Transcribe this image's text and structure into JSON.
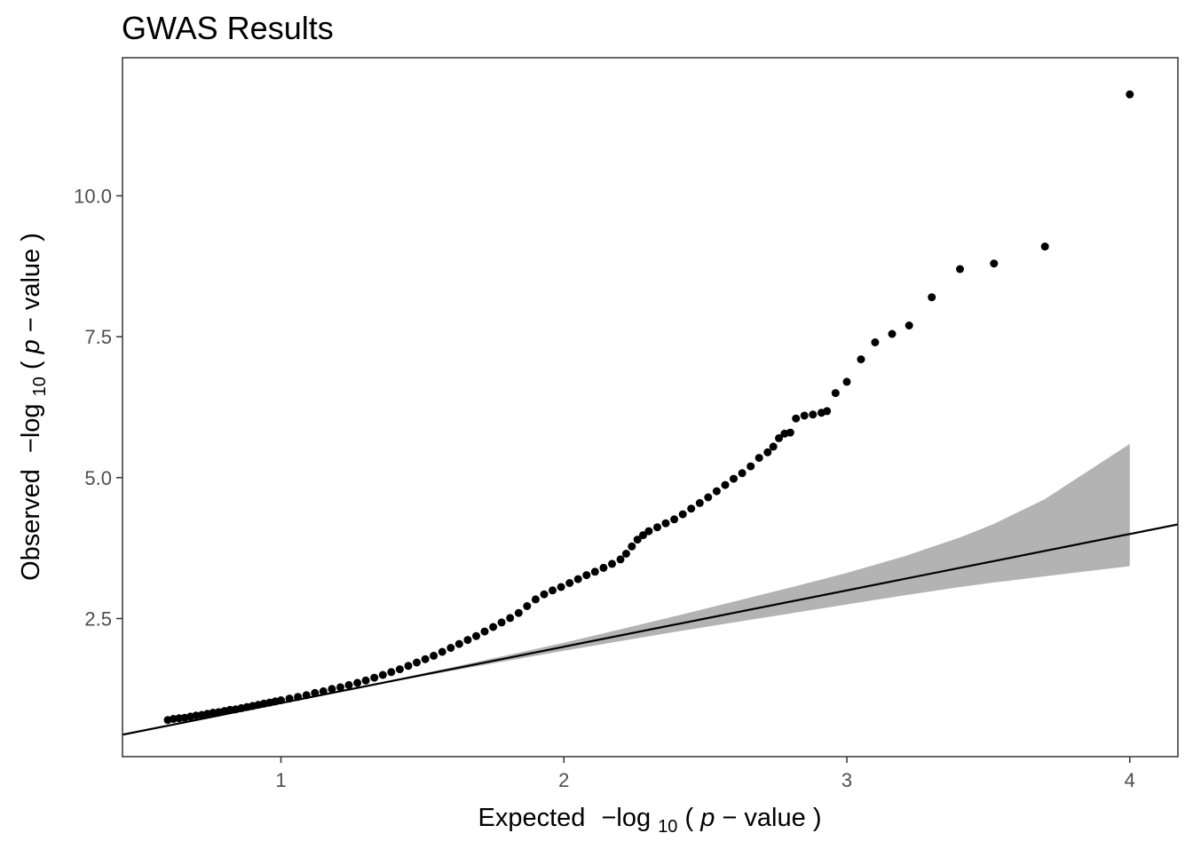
{
  "chart_data": {
    "type": "scatter",
    "title": "GWAS Results",
    "xlabel": {
      "prefix": "Expected",
      "minus_log": "−log",
      "sub": "10",
      "open": "(",
      "var": "p",
      "mid": " − value",
      "close": ")"
    },
    "ylabel": {
      "prefix": "Observed",
      "minus_log": "−log",
      "sub": "10",
      "open": "(",
      "var": "p",
      "mid": " − value",
      "close": ")"
    },
    "xlim": [
      0.44,
      4.17
    ],
    "ylim": [
      0.05,
      12.45
    ],
    "x_ticks": [
      {
        "value": 1,
        "label": "1"
      },
      {
        "value": 2,
        "label": "2"
      },
      {
        "value": 3,
        "label": "3"
      },
      {
        "value": 4,
        "label": "4"
      }
    ],
    "y_ticks": [
      {
        "value": 2.5,
        "label": "2.5"
      },
      {
        "value": 5.0,
        "label": "5.0"
      },
      {
        "value": 7.5,
        "label": "7.5"
      },
      {
        "value": 10.0,
        "label": "10.0"
      }
    ],
    "grid": false,
    "legend": "none",
    "reference_line": {
      "slope": 1,
      "intercept": 0,
      "color": "#000000"
    },
    "confidence_band": {
      "color": "#b3b3b3",
      "x": [
        1.3,
        1.6,
        1.8,
        2.0,
        2.2,
        2.4,
        2.6,
        2.8,
        3.0,
        3.2,
        3.4,
        3.52,
        3.7,
        4.0
      ],
      "lower": [
        1.29,
        1.57,
        1.75,
        1.93,
        2.1,
        2.27,
        2.43,
        2.59,
        2.75,
        2.91,
        3.06,
        3.14,
        3.25,
        3.43
      ],
      "upper": [
        1.31,
        1.63,
        1.85,
        2.07,
        2.31,
        2.55,
        2.8,
        3.05,
        3.31,
        3.6,
        3.94,
        4.18,
        4.62,
        5.6
      ]
    },
    "point_color": "#000000",
    "points": [
      [
        0.6,
        0.7
      ],
      [
        0.62,
        0.72
      ],
      [
        0.64,
        0.73
      ],
      [
        0.66,
        0.74
      ],
      [
        0.68,
        0.76
      ],
      [
        0.7,
        0.78
      ],
      [
        0.72,
        0.79
      ],
      [
        0.74,
        0.81
      ],
      [
        0.76,
        0.83
      ],
      [
        0.78,
        0.84
      ],
      [
        0.8,
        0.86
      ],
      [
        0.82,
        0.88
      ],
      [
        0.84,
        0.89
      ],
      [
        0.86,
        0.91
      ],
      [
        0.88,
        0.93
      ],
      [
        0.9,
        0.95
      ],
      [
        0.92,
        0.97
      ],
      [
        0.94,
        0.99
      ],
      [
        0.96,
        1.01
      ],
      [
        0.98,
        1.03
      ],
      [
        1.0,
        1.05
      ],
      [
        1.03,
        1.08
      ],
      [
        1.06,
        1.11
      ],
      [
        1.09,
        1.14
      ],
      [
        1.12,
        1.18
      ],
      [
        1.15,
        1.21
      ],
      [
        1.18,
        1.25
      ],
      [
        1.21,
        1.28
      ],
      [
        1.24,
        1.32
      ],
      [
        1.27,
        1.36
      ],
      [
        1.3,
        1.4
      ],
      [
        1.33,
        1.45
      ],
      [
        1.36,
        1.5
      ],
      [
        1.39,
        1.55
      ],
      [
        1.42,
        1.6
      ],
      [
        1.45,
        1.66
      ],
      [
        1.48,
        1.72
      ],
      [
        1.51,
        1.78
      ],
      [
        1.54,
        1.84
      ],
      [
        1.57,
        1.91
      ],
      [
        1.6,
        1.98
      ],
      [
        1.63,
        2.05
      ],
      [
        1.66,
        2.12
      ],
      [
        1.69,
        2.19
      ],
      [
        1.72,
        2.27
      ],
      [
        1.75,
        2.35
      ],
      [
        1.78,
        2.43
      ],
      [
        1.81,
        2.51
      ],
      [
        1.84,
        2.6
      ],
      [
        1.87,
        2.72
      ],
      [
        1.9,
        2.84
      ],
      [
        1.93,
        2.93
      ],
      [
        1.96,
        3.0
      ],
      [
        1.99,
        3.06
      ],
      [
        2.02,
        3.13
      ],
      [
        2.05,
        3.2
      ],
      [
        2.08,
        3.27
      ],
      [
        2.11,
        3.33
      ],
      [
        2.14,
        3.4
      ],
      [
        2.17,
        3.47
      ],
      [
        2.2,
        3.55
      ],
      [
        2.22,
        3.65
      ],
      [
        2.24,
        3.78
      ],
      [
        2.26,
        3.9
      ],
      [
        2.28,
        3.98
      ],
      [
        2.3,
        4.05
      ],
      [
        2.33,
        4.12
      ],
      [
        2.36,
        4.19
      ],
      [
        2.39,
        4.26
      ],
      [
        2.42,
        4.35
      ],
      [
        2.45,
        4.45
      ],
      [
        2.48,
        4.55
      ],
      [
        2.51,
        4.65
      ],
      [
        2.54,
        4.76
      ],
      [
        2.57,
        4.87
      ],
      [
        2.6,
        4.98
      ],
      [
        2.63,
        5.08
      ],
      [
        2.66,
        5.2
      ],
      [
        2.69,
        5.35
      ],
      [
        2.72,
        5.45
      ],
      [
        2.74,
        5.55
      ],
      [
        2.76,
        5.7
      ],
      [
        2.78,
        5.78
      ],
      [
        2.8,
        5.8
      ],
      [
        2.82,
        6.05
      ],
      [
        2.85,
        6.1
      ],
      [
        2.88,
        6.12
      ],
      [
        2.91,
        6.15
      ],
      [
        2.93,
        6.18
      ],
      [
        2.96,
        6.5
      ],
      [
        3.0,
        6.7
      ],
      [
        3.05,
        7.1
      ],
      [
        3.1,
        7.4
      ],
      [
        3.16,
        7.55
      ],
      [
        3.22,
        7.7
      ],
      [
        3.3,
        8.2
      ],
      [
        3.4,
        8.7
      ],
      [
        3.52,
        8.8
      ],
      [
        3.7,
        9.1
      ],
      [
        4.0,
        11.8
      ]
    ]
  }
}
